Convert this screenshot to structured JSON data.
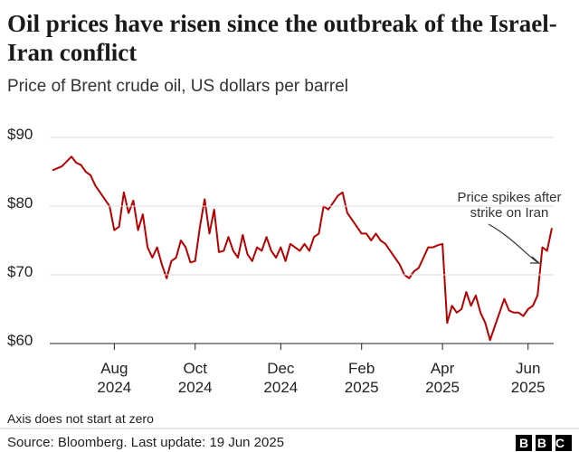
{
  "chart_data": {
    "type": "line",
    "title": "Oil prices have risen since the outbreak of the Israel-Iran conflict",
    "subtitle": "Price of Brent crude oil, US dollars per barrel",
    "annotation": "Price spikes after strike on Iran",
    "note": "Axis does not start at zero",
    "source": "Source: Bloomberg. Last update: 19 Jun 2025",
    "logo": "BBC",
    "categories": [
      null,
      null,
      null,
      null,
      null,
      null,
      null,
      null,
      null,
      null,
      null,
      null,
      null,
      "Aug 2024",
      null,
      null,
      null,
      null,
      null,
      null,
      null,
      null,
      null,
      null,
      null,
      null,
      null,
      null,
      null,
      null,
      "Oct 2024",
      null,
      null,
      null,
      null,
      null,
      null,
      null,
      null,
      null,
      null,
      null,
      null,
      null,
      null,
      null,
      null,
      null,
      "Dec 2024",
      null,
      null,
      null,
      null,
      null,
      null,
      null,
      null,
      null,
      null,
      null,
      null,
      null,
      null,
      null,
      null,
      "Feb 2025",
      null,
      null,
      null,
      null,
      null,
      null,
      null,
      null,
      null,
      null,
      null,
      null,
      null,
      null,
      null,
      null,
      "Apr 2025",
      null,
      null,
      null,
      null,
      null,
      null,
      null,
      null,
      null,
      null,
      null,
      null,
      null,
      null,
      null,
      null,
      null,
      "Jun 2025",
      null,
      null,
      null,
      null,
      null
    ],
    "series": [
      {
        "name": "Brent crude",
        "color": "#b80000",
        "values": [
          85.2,
          85.5,
          85.8,
          86.5,
          87.2,
          86.3,
          86,
          85,
          84.5,
          83,
          82,
          81,
          80,
          76.5,
          77,
          82,
          79,
          80.8,
          76.5,
          78.8,
          74,
          72.5,
          74,
          71.5,
          69.5,
          72,
          72.5,
          75,
          74,
          71.8,
          72,
          77,
          81,
          76,
          79.5,
          73.3,
          73.5,
          75.5,
          73.5,
          72.5,
          75.8,
          73,
          72,
          74,
          73.5,
          75.5,
          73.5,
          72.5,
          74,
          72,
          74.5,
          74,
          73.5,
          74.5,
          73.5,
          75.5,
          76,
          80,
          79.5,
          80.5,
          81.5,
          82,
          79,
          78,
          77,
          76,
          76,
          75,
          76,
          75,
          74.5,
          73.5,
          72.5,
          71.5,
          70,
          69.5,
          70.5,
          71,
          72.5,
          74,
          74,
          74.3,
          74.5,
          63,
          65.5,
          64.5,
          65,
          67.5,
          65.5,
          67,
          64.5,
          63,
          60.5,
          62.5,
          64.5,
          66.5,
          64.8,
          64.5,
          64.5,
          64,
          65,
          65.5,
          67,
          74,
          73.5,
          76.8
        ]
      }
    ],
    "ylim": [
      60,
      90
    ],
    "yticks": [
      {
        "value": 60,
        "label": "$60"
      },
      {
        "value": 70,
        "label": "$70"
      },
      {
        "value": 80,
        "label": "$80"
      },
      {
        "value": 90,
        "label": "$90"
      }
    ],
    "grid": true
  }
}
